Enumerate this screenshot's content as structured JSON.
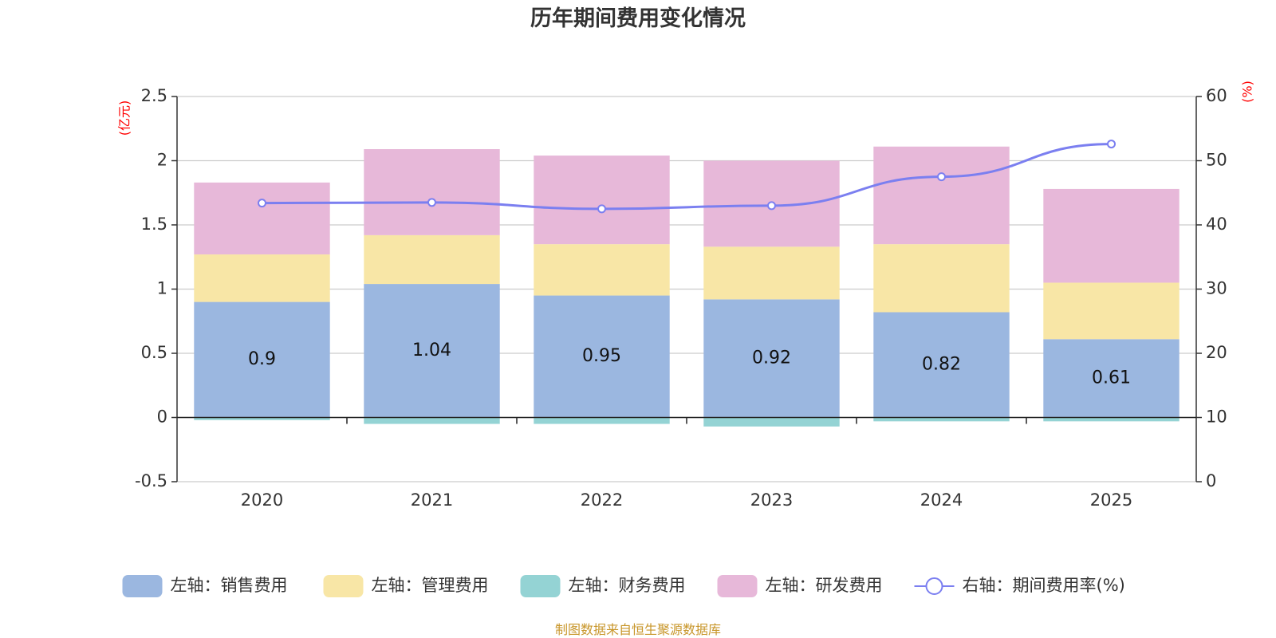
{
  "chart_data": {
    "type": "bar",
    "title": "历年期间费用变化情况",
    "categories": [
      "2020",
      "2021",
      "2022",
      "2023",
      "2024",
      "2025"
    ],
    "series": [
      {
        "name": "左轴：销售费用",
        "axis": "left",
        "kind": "stacked-bar",
        "color": "#9bb7e0",
        "values": [
          0.9,
          1.04,
          0.95,
          0.92,
          0.82,
          0.61
        ],
        "show_labels": true
      },
      {
        "name": "左轴：管理费用",
        "axis": "left",
        "kind": "stacked-bar",
        "color": "#f8e6a6",
        "values": [
          0.37,
          0.38,
          0.4,
          0.41,
          0.53,
          0.44
        ],
        "show_labels": false
      },
      {
        "name": "左轴：财务费用",
        "axis": "left",
        "kind": "stacked-bar",
        "color": "#94d3d4",
        "values": [
          -0.02,
          -0.05,
          -0.05,
          -0.07,
          -0.03,
          -0.03
        ],
        "show_labels": false
      },
      {
        "name": "左轴：研发费用",
        "axis": "left",
        "kind": "stacked-bar",
        "color": "#e7b8d9",
        "values": [
          0.56,
          0.67,
          0.69,
          0.67,
          0.76,
          0.73
        ],
        "show_labels": false
      },
      {
        "name": "右轴：期间费用率(%)",
        "axis": "right",
        "kind": "line",
        "color": "#7b7ff0",
        "values": [
          43.4,
          43.5,
          42.5,
          43.0,
          47.5,
          52.6
        ],
        "show_labels": false
      }
    ],
    "left_axis": {
      "unit": "(亿元)",
      "ylim": [
        -0.5,
        2.5
      ],
      "ticks": [
        -0.5,
        0,
        0.5,
        1,
        1.5,
        2,
        2.5
      ],
      "tick_labels": [
        "-0.5",
        "0",
        "0.5",
        "1",
        "1.5",
        "2",
        "2.5"
      ]
    },
    "right_axis": {
      "unit": "(%)",
      "ylim": [
        0,
        60
      ],
      "ticks": [
        0,
        10,
        20,
        30,
        40,
        50,
        60
      ],
      "tick_labels": [
        "0",
        "10",
        "20",
        "30",
        "40",
        "50",
        "60"
      ]
    },
    "grid": true,
    "legend_position": "bottom",
    "source": "制图数据来自恒生聚源数据库"
  }
}
